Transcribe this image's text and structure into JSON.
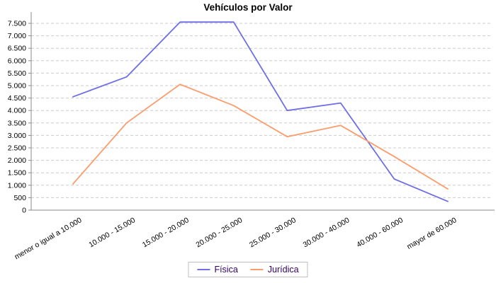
{
  "title": "Vehículos por Valor",
  "chart_data": {
    "type": "line",
    "title": "Vehículos por Valor",
    "categories": [
      "menor o igual a 10.000",
      "10.000 - 15.000",
      "15.000 - 20.000",
      "20.000 - 25.000",
      "25.000 - 30.000",
      "30.000 - 40.000",
      "40.000 - 60.000",
      "mayor de 60.000"
    ],
    "series": [
      {
        "name": "Física",
        "color": "#6e6ee6",
        "values": [
          4550,
          5350,
          7550,
          7550,
          4000,
          4300,
          1250,
          350
        ]
      },
      {
        "name": "Jurídica",
        "color": "#fb9c6c",
        "values": [
          1050,
          3500,
          5050,
          4200,
          2950,
          3400,
          2150,
          850
        ]
      }
    ],
    "ylim": [
      0,
      7500
    ],
    "ytick_step": 500,
    "ytick_labels": [
      "0",
      "500",
      "1.000",
      "1.500",
      "2.000",
      "2.500",
      "3.000",
      "3.500",
      "4.000",
      "4.500",
      "5.000",
      "5.500",
      "6.000",
      "6.500",
      "7.000",
      "7.500"
    ],
    "x_label_rotation_deg": -30,
    "grid": "horizontal-dashed",
    "legend_position": "bottom-center",
    "colors": {
      "grid": "#cccccc",
      "axis": "#8a8a8a",
      "tick_text": "#000000",
      "legend_text": "#330066",
      "legend_border": "#c0c0c0",
      "background": "#ffffff"
    }
  }
}
